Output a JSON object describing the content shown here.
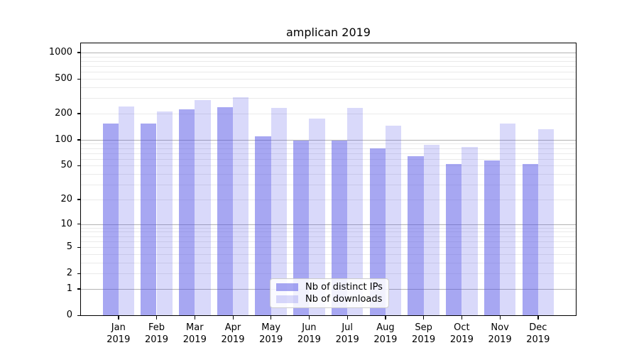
{
  "title": "amplican 2019",
  "colors": {
    "bar_ips": "rgba(80,80,230,0.5)",
    "bar_downloads": "rgba(80,80,230,0.22)",
    "grid_major": "#b3b3b3",
    "grid_minor": "#eaeaea",
    "spine": "#000000",
    "legend_border": "#cccccc"
  },
  "legend": {
    "items": [
      {
        "label": "Nb of distinct IPs"
      },
      {
        "label": "Nb of downloads"
      }
    ]
  },
  "chart_data": {
    "type": "bar",
    "title": "amplican 2019",
    "categories": [
      "Jan",
      "Feb",
      "Mar",
      "Apr",
      "May",
      "Jun",
      "Jul",
      "Aug",
      "Sep",
      "Oct",
      "Nov",
      "Dec"
    ],
    "year_label": "2019",
    "series": [
      {
        "name": "Nb of distinct IPs",
        "values": [
          153,
          153,
          222,
          238,
          110,
          98,
          98,
          80,
          65,
          52,
          58,
          52
        ]
      },
      {
        "name": "Nb of downloads",
        "values": [
          240,
          212,
          286,
          305,
          230,
          176,
          232,
          144,
          88,
          82,
          154,
          131
        ]
      }
    ],
    "xlabel": "",
    "ylabel": "",
    "yscale": "log1p",
    "yticks": [
      0,
      1,
      2,
      5,
      10,
      20,
      50,
      100,
      200,
      500,
      1000
    ],
    "ylim": [
      0,
      1270
    ],
    "grid": "major+minor",
    "legend_position": "lower center"
  }
}
